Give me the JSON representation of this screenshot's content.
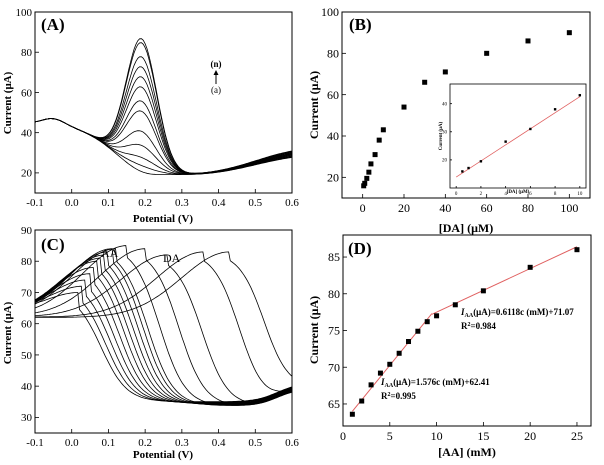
{
  "chart_data": [
    {
      "id": "A",
      "type": "line",
      "panel_label": "(A)",
      "xlabel": "Potential (V)",
      "ylabel": "Current (μA)",
      "xlim": [
        -0.1,
        0.6
      ],
      "ylim": [
        10,
        100
      ],
      "xticks": [
        -0.1,
        0.0,
        0.1,
        0.2,
        0.3,
        0.4,
        0.5,
        0.6
      ],
      "yticks": [
        20,
        40,
        60,
        80,
        100
      ],
      "annotation_top": "(n)",
      "annotation_bottom": "(a)",
      "peak_potential": 0.19,
      "series_peak_currents": [
        23,
        26,
        30,
        36,
        43,
        53,
        58,
        65,
        70,
        75,
        80,
        87,
        89
      ]
    },
    {
      "id": "B",
      "type": "scatter",
      "panel_label": "(B)",
      "xlabel": "[DA] (μM)",
      "ylabel": "Current (μA)",
      "xlim": [
        -10,
        110
      ],
      "ylim": [
        10,
        100
      ],
      "xticks": [
        0,
        20,
        40,
        60,
        80,
        100
      ],
      "yticks": [
        20,
        40,
        60,
        80,
        100
      ],
      "points": [
        [
          0.5,
          15.9
        ],
        [
          1,
          17.1
        ],
        [
          2,
          19.5
        ],
        [
          3,
          22.5
        ],
        [
          4,
          26.5
        ],
        [
          6,
          31
        ],
        [
          8,
          38
        ],
        [
          10,
          43
        ],
        [
          20,
          54
        ],
        [
          30,
          66
        ],
        [
          40,
          71
        ],
        [
          60,
          80
        ],
        [
          80,
          86
        ],
        [
          100,
          90
        ]
      ],
      "inset": {
        "type": "scatter",
        "xlabel": "[DA] (μM)",
        "ylabel": "Current (μA)",
        "xlim": [
          -0.5,
          10.5
        ],
        "ylim": [
          10,
          47
        ],
        "xticks": [
          0,
          2,
          4,
          6,
          8,
          10
        ],
        "yticks": [
          20,
          30,
          40
        ],
        "points": [
          [
            0.5,
            15.9
          ],
          [
            1,
            17.1
          ],
          [
            2,
            19.5
          ],
          [
            4,
            26.5
          ],
          [
            6,
            31
          ],
          [
            8,
            38
          ],
          [
            10,
            43
          ]
        ],
        "fit": [
          [
            0,
            13.9
          ],
          [
            10,
            42.5
          ]
        ]
      }
    },
    {
      "id": "C",
      "type": "line",
      "panel_label": "(C)",
      "xlabel": "Potential (V)",
      "ylabel": "Current (μA)",
      "xlim": [
        -0.1,
        0.6
      ],
      "ylim": [
        25,
        90
      ],
      "xticks": [
        -0.1,
        0.0,
        0.1,
        0.2,
        0.3,
        0.4,
        0.5,
        0.6
      ],
      "yticks": [
        30,
        40,
        50,
        60,
        70,
        80,
        90
      ],
      "peak_labels": [
        "AA",
        "DA"
      ],
      "series_aa_peaks": [
        [
          0.02,
          70
        ],
        [
          0.03,
          72
        ],
        [
          0.04,
          74
        ],
        [
          0.05,
          76
        ],
        [
          0.06,
          78
        ],
        [
          0.07,
          80
        ],
        [
          0.08,
          81
        ],
        [
          0.09,
          82
        ],
        [
          0.1,
          83
        ],
        [
          0.11,
          84
        ],
        [
          0.12,
          84
        ],
        [
          0.15,
          85
        ],
        [
          0.2,
          84
        ],
        [
          0.26,
          82
        ],
        [
          0.36,
          83
        ],
        [
          0.43,
          83
        ]
      ]
    },
    {
      "id": "D",
      "type": "scatter",
      "panel_label": "(D)",
      "xlabel": "[AA] (mM)",
      "ylabel": "Current (μA)",
      "xlim": [
        0,
        26.5
      ],
      "ylim": [
        62,
        88
      ],
      "xticks": [
        0,
        5,
        10,
        15,
        20,
        25
      ],
      "yticks": [
        65,
        70,
        75,
        80,
        85
      ],
      "points": [
        [
          1,
          63.6
        ],
        [
          2,
          65.4
        ],
        [
          3,
          67.6
        ],
        [
          4,
          69.2
        ],
        [
          5,
          70.4
        ],
        [
          6,
          71.9
        ],
        [
          7,
          73.5
        ],
        [
          8,
          74.9
        ],
        [
          9,
          76.2
        ],
        [
          10,
          77
        ],
        [
          12,
          78.5
        ],
        [
          15,
          80.4
        ],
        [
          20,
          83.6
        ],
        [
          25,
          86
        ]
      ],
      "fit1": [
        [
          1,
          64
        ],
        [
          9.5,
          77.3
        ]
      ],
      "fit2": [
        [
          9.5,
          77.2
        ],
        [
          25,
          86.4
        ]
      ],
      "eq1_sub": "AA",
      "eq1_rest": "(μA)=0.6118c (mM)+71.07",
      "r2_1": "=0.984",
      "eq2_sub": "AA",
      "eq2_rest": "(μA)=1.576c (mM)+62.41",
      "r2_2": "=0.995"
    }
  ]
}
